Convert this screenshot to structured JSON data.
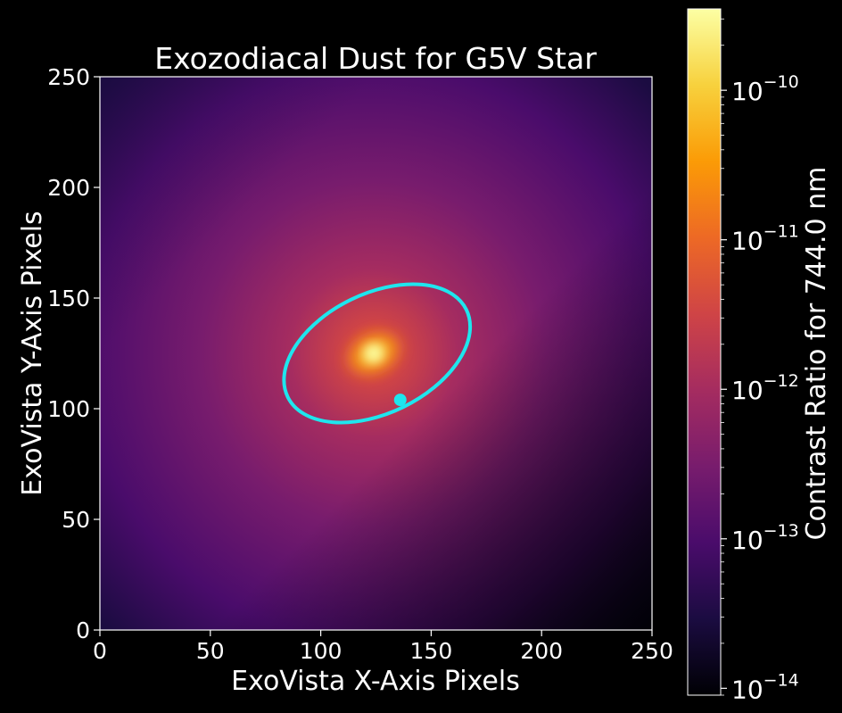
{
  "chart_data": {
    "type": "heatmap",
    "title": "Exozodiacal Dust for G5V Star",
    "xlabel": "ExoVista X-Axis Pixels",
    "ylabel": "ExoVista Y-Axis Pixels",
    "xlim": [
      0,
      250
    ],
    "ylim": [
      0,
      250
    ],
    "xticks": [
      0,
      50,
      100,
      150,
      200,
      250
    ],
    "yticks": [
      0,
      50,
      100,
      150,
      200,
      250
    ],
    "xtick_labels": [
      "0",
      "50",
      "100",
      "150",
      "200",
      "250"
    ],
    "ytick_labels": [
      "0",
      "50",
      "100",
      "150",
      "200",
      "250"
    ],
    "star_center": [
      124,
      125
    ],
    "orbit": {
      "center": [
        125.5,
        125
      ],
      "semi_major": 45,
      "semi_minor": 27,
      "rotation_deg": 26,
      "color": "#1ee6ee",
      "planet_position": [
        136,
        104
      ]
    },
    "colorbar": {
      "label": "Contrast Ratio for 744.0 nm",
      "scale": "log",
      "min": 9e-15,
      "max": 3.5e-10,
      "ticks": [
        1e-14,
        1e-13,
        1e-12,
        1e-11,
        1e-10
      ],
      "tick_mantissa": "10",
      "tick_exponents": [
        "−14",
        "−13",
        "−12",
        "−11",
        "−10"
      ],
      "colormap": "inferno",
      "colors": [
        "#000004",
        "#1b0c41",
        "#4a0c6b",
        "#781c6d",
        "#a52c60",
        "#cf4446",
        "#ed6925",
        "#fb9b06",
        "#f7d13d",
        "#fcffa4"
      ]
    },
    "grid": false,
    "background": "#000000"
  }
}
